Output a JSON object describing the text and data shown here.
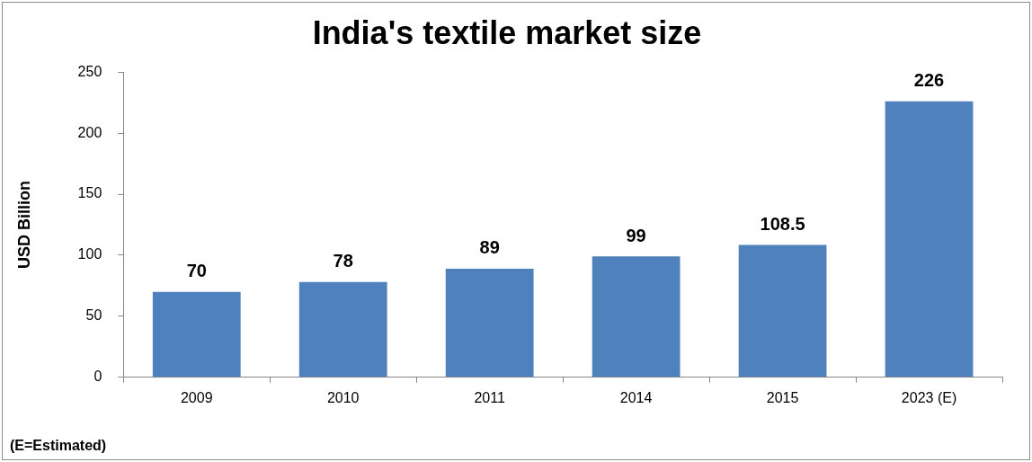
{
  "chart_data": {
    "type": "bar",
    "title": "India's textile market size",
    "ylabel": "USD Billion",
    "categories": [
      "2009",
      "2010",
      "2011",
      "2014",
      "2015",
      "2023 (E)"
    ],
    "values": [
      70,
      78,
      89,
      99,
      108.5,
      226
    ],
    "color": "#4f81bd",
    "ylim": [
      0,
      250
    ],
    "yticks": [
      0,
      50,
      100,
      150,
      200,
      250
    ],
    "grid": false,
    "legend": false,
    "data_labels": true,
    "value_labels": [
      "70",
      "78",
      "89",
      "99",
      "108.5",
      "226"
    ],
    "annotations": [
      "(E=Estimated)"
    ]
  }
}
